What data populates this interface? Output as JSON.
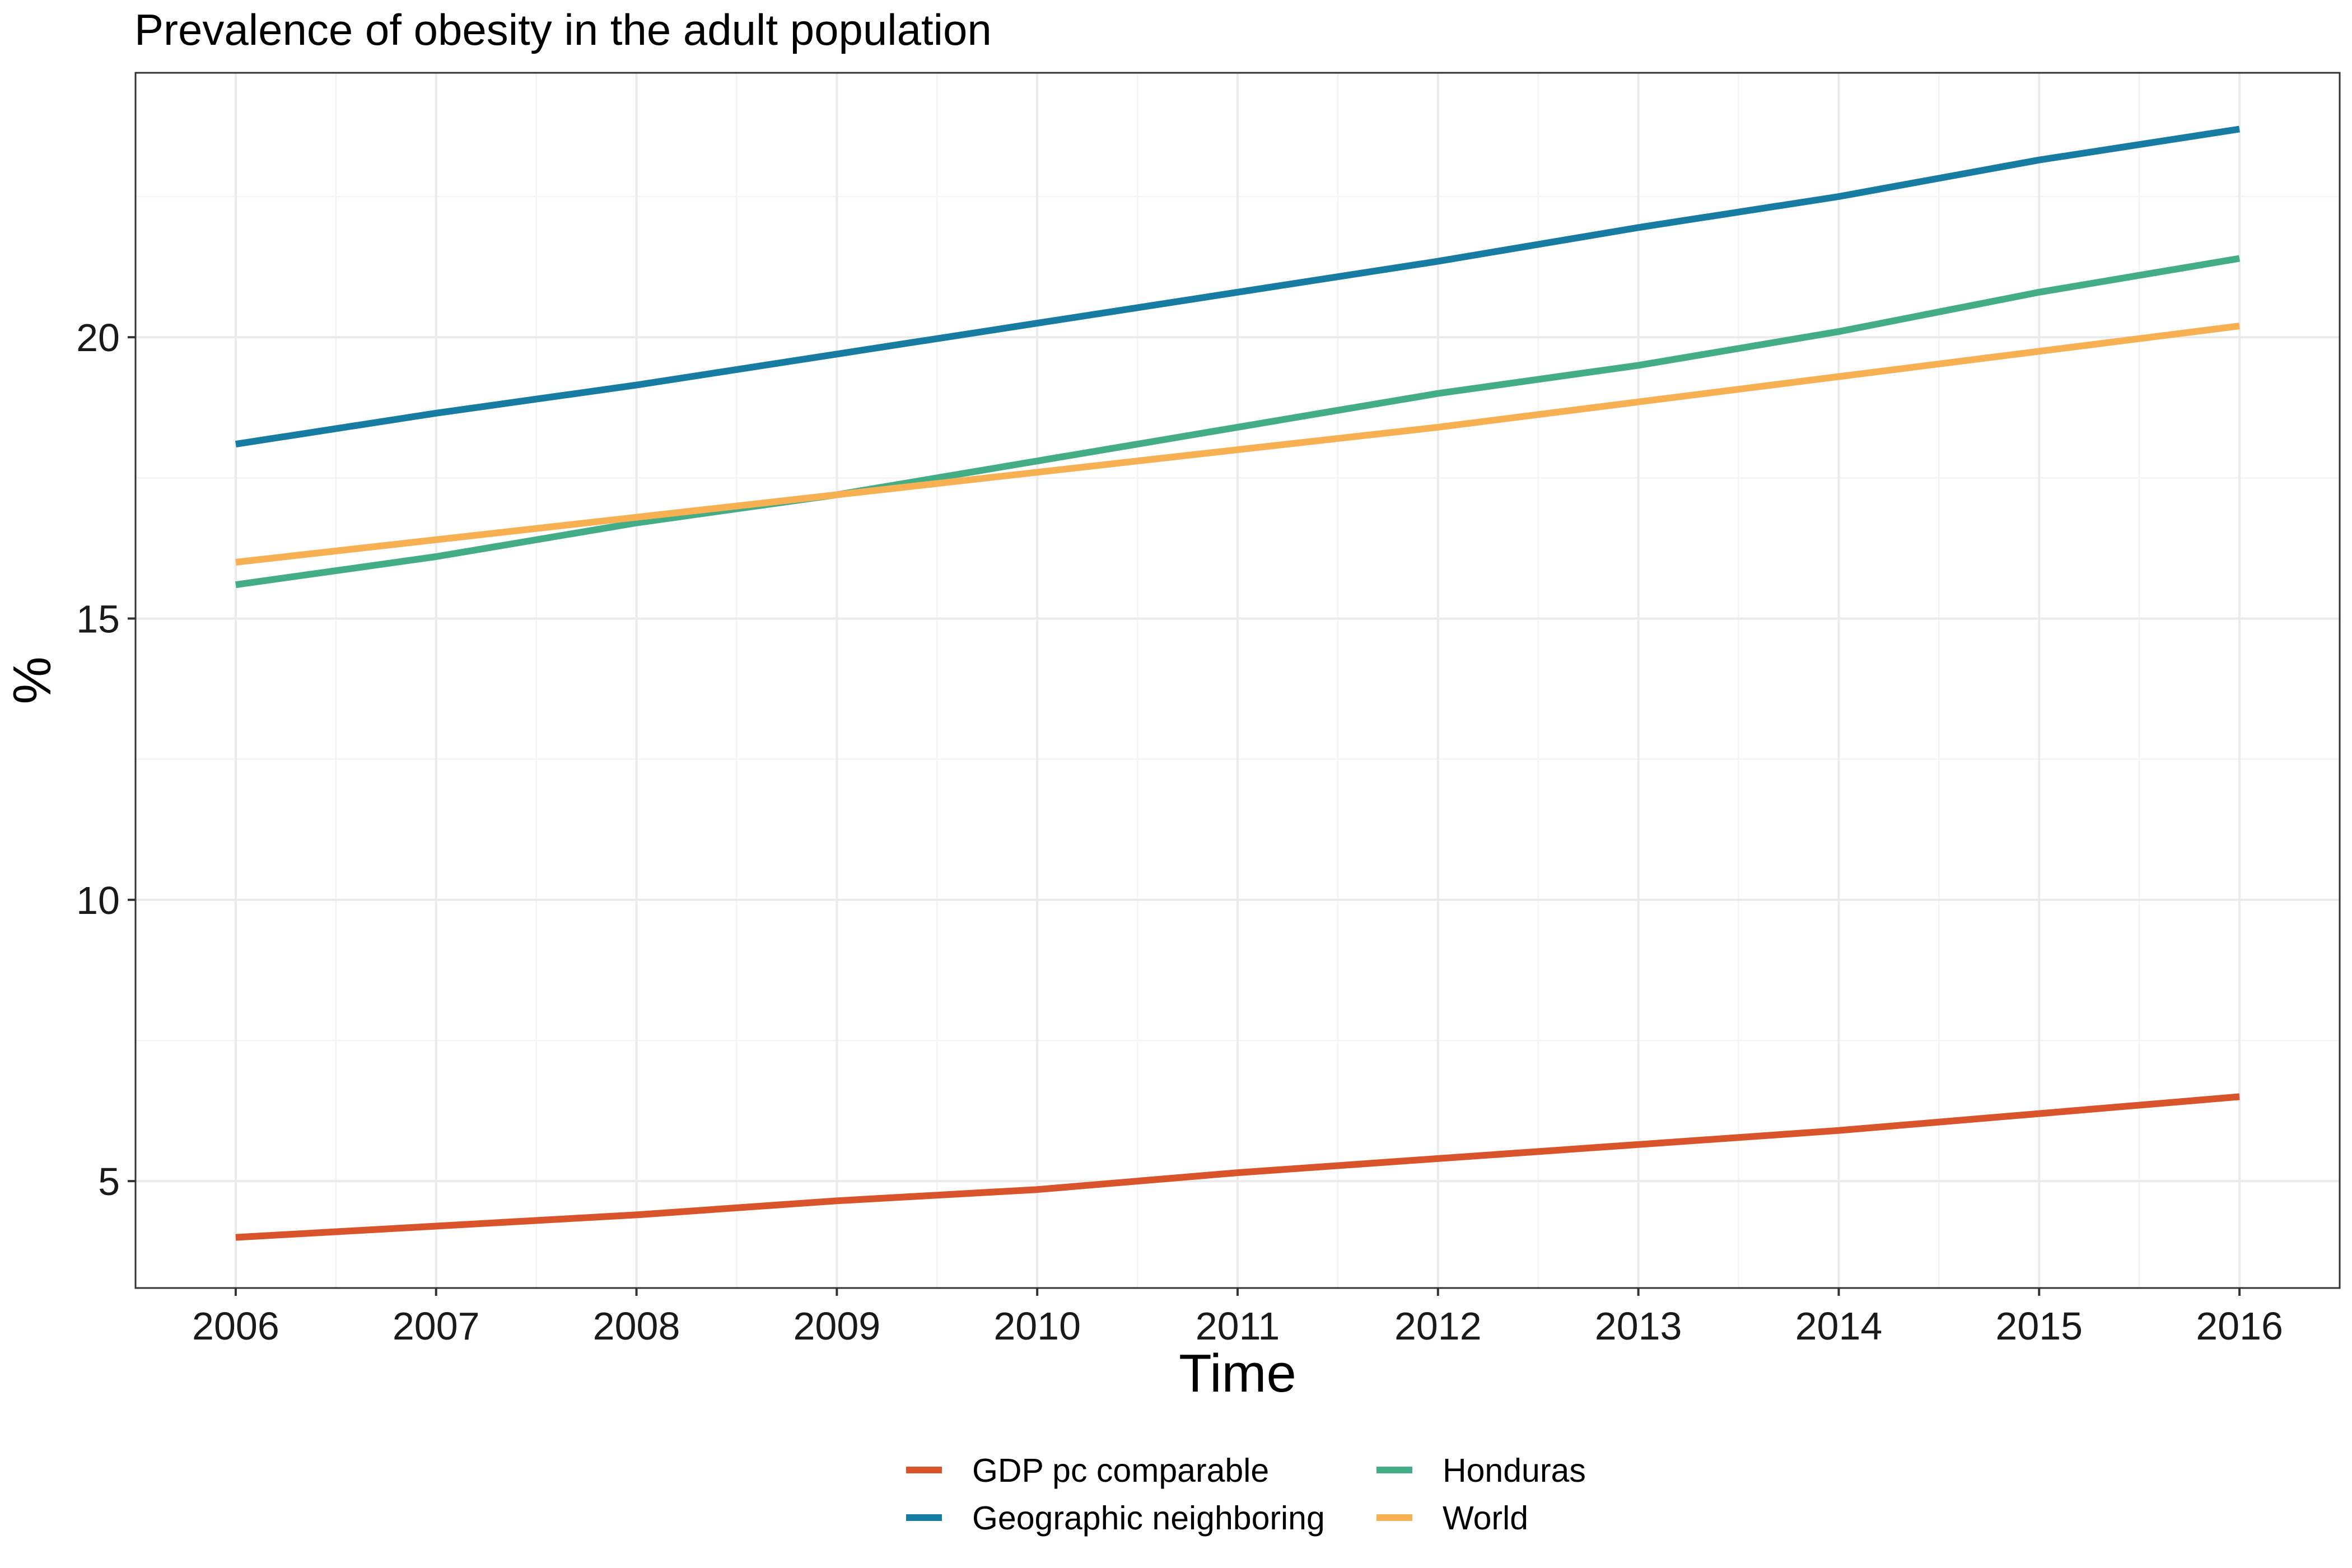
{
  "chart_data": {
    "type": "line",
    "title": "Prevalence of obesity in the adult population",
    "xlabel": "Time",
    "ylabel": "%",
    "x": [
      2006,
      2007,
      2008,
      2009,
      2010,
      2011,
      2012,
      2013,
      2014,
      2015,
      2016
    ],
    "xlim": [
      2005.5,
      2016.5
    ],
    "ylim": [
      3.1,
      24.7
    ],
    "yticks": [
      5,
      10,
      15,
      20
    ],
    "grid": true,
    "legend_position": "bottom",
    "series": [
      {
        "name": "GDP pc comparable",
        "color": "#d9532b",
        "values": [
          4.0,
          4.2,
          4.4,
          4.65,
          4.85,
          5.15,
          5.4,
          5.65,
          5.9,
          6.2,
          6.5
        ]
      },
      {
        "name": "Geographic neighboring",
        "color": "#177ca1",
        "values": [
          18.1,
          18.65,
          19.15,
          19.7,
          20.25,
          20.8,
          21.35,
          21.95,
          22.5,
          23.15,
          23.7
        ]
      },
      {
        "name": "Honduras",
        "color": "#43ae85",
        "values": [
          15.6,
          16.1,
          16.7,
          17.2,
          17.8,
          18.4,
          19.0,
          19.5,
          20.1,
          20.8,
          21.4
        ]
      },
      {
        "name": "World",
        "color": "#f7b052",
        "values": [
          16.0,
          16.4,
          16.8,
          17.2,
          17.6,
          18.0,
          18.4,
          18.85,
          19.3,
          19.75,
          20.2
        ]
      }
    ]
  }
}
